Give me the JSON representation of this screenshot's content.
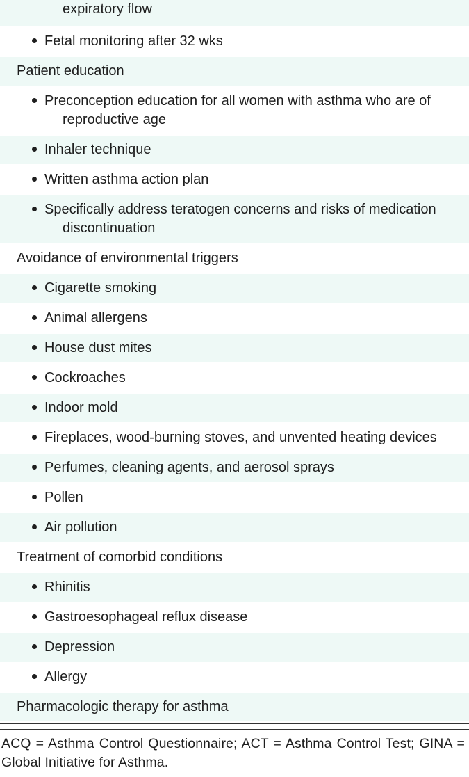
{
  "colors": {
    "stripe_odd": "#eef9f6",
    "stripe_even": "#ffffff",
    "text": "#1e1e1e",
    "divider": "#333333"
  },
  "rows": [
    {
      "type": "continuation",
      "text": "expiratory flow"
    },
    {
      "type": "bullet",
      "text": "Fetal monitoring after 32 wks"
    },
    {
      "type": "heading",
      "text": "Patient education"
    },
    {
      "type": "bullet",
      "text": "Preconception education for all women with asthma who are of reproductive age",
      "wrap_indent": true
    },
    {
      "type": "bullet",
      "text": "Inhaler technique"
    },
    {
      "type": "bullet",
      "text": "Written asthma action plan"
    },
    {
      "type": "bullet",
      "text": "Specifically address teratogen concerns and risks of medication discontinuation",
      "wrap_indent": true
    },
    {
      "type": "heading",
      "text": "Avoidance of environmental triggers"
    },
    {
      "type": "bullet",
      "text": "Cigarette smoking"
    },
    {
      "type": "bullet",
      "text": "Animal allergens"
    },
    {
      "type": "bullet",
      "text": "House dust mites"
    },
    {
      "type": "bullet",
      "text": "Cockroaches"
    },
    {
      "type": "bullet",
      "text": "Indoor mold"
    },
    {
      "type": "bullet",
      "text": "Fireplaces, wood-burning stoves, and unvented heating devices",
      "wrap_indent": true
    },
    {
      "type": "bullet",
      "text": "Perfumes, cleaning agents, and aerosol sprays"
    },
    {
      "type": "bullet",
      "text": "Pollen"
    },
    {
      "type": "bullet",
      "text": "Air pollution"
    },
    {
      "type": "heading",
      "text": "Treatment of comorbid conditions"
    },
    {
      "type": "bullet",
      "text": "Rhinitis"
    },
    {
      "type": "bullet",
      "text": "Gastroesophageal reflux disease"
    },
    {
      "type": "bullet",
      "text": "Depression"
    },
    {
      "type": "bullet",
      "text": "Allergy"
    },
    {
      "type": "heading",
      "text": "Pharmacologic therapy for asthma"
    }
  ],
  "footnote": "ACQ = Asthma Control Questionnaire; ACT = Asthma Control Test; GINA = Global Initiative for Asthma."
}
